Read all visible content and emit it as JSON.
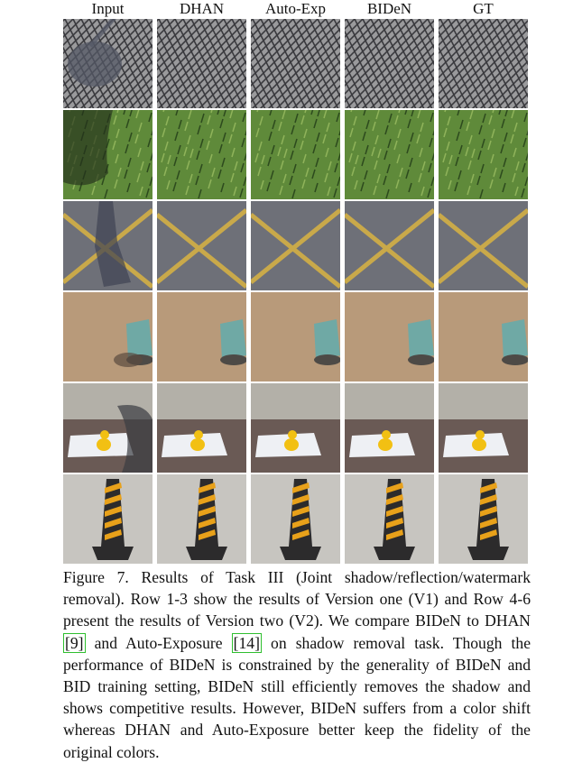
{
  "columns": [
    "Input",
    "DHAN",
    "Auto-Exp",
    "BIDeN",
    "GT"
  ],
  "rows": [
    {
      "scene": "tiled-pavement",
      "colors": {
        "ground": "#9a9a9c",
        "line": "#3a3a3e",
        "shadow": "#545866"
      }
    },
    {
      "scene": "grass",
      "colors": {
        "ground": "#5f8a3a",
        "light": "#8fb35a",
        "dark": "#2d4a1e",
        "shadow": "#23301c"
      }
    },
    {
      "scene": "asphalt-yellow-lines",
      "colors": {
        "ground": "#6e7078",
        "line": "#c9a94a",
        "shadow": "#3e4352"
      }
    },
    {
      "scene": "sand-object",
      "colors": {
        "ground": "#b89a7a",
        "object": "#6fa9a5",
        "shadow": "#5a4a3e"
      }
    },
    {
      "scene": "curb-duck-paper",
      "colors": {
        "wall": "#b3b0a8",
        "paper": "#eef0f4",
        "duck": "#f2c013",
        "ground": "#6a5a55",
        "shadow": "#3b3c42"
      }
    },
    {
      "scene": "traffic-cone",
      "colors": {
        "ground": "#c7c5c0",
        "cone": "#2c2b2c",
        "stripe": "#e8a11a"
      }
    }
  ],
  "caption": {
    "label": "Figure 7.",
    "before_ref1": " Results of Task III (Joint shadow/reflection/watermark removal). Row 1-3 show the results of Version one (V1) and Row 4-6 present the results of Version two (V2). We compare BIDeN to DHAN ",
    "ref1": "[9]",
    "between_refs": " and Auto-Exposure ",
    "ref2": "[14]",
    "after_ref2": " on shadow removal task. Though the performance of BIDeN is constrained by the generality of BIDeN and BID training setting, BIDeN still efficiently removes the shadow and shows competitive results. However, BIDeN suffers from a color shift whereas DHAN and Auto-Exposure better keep the fidelity of the original colors."
  }
}
